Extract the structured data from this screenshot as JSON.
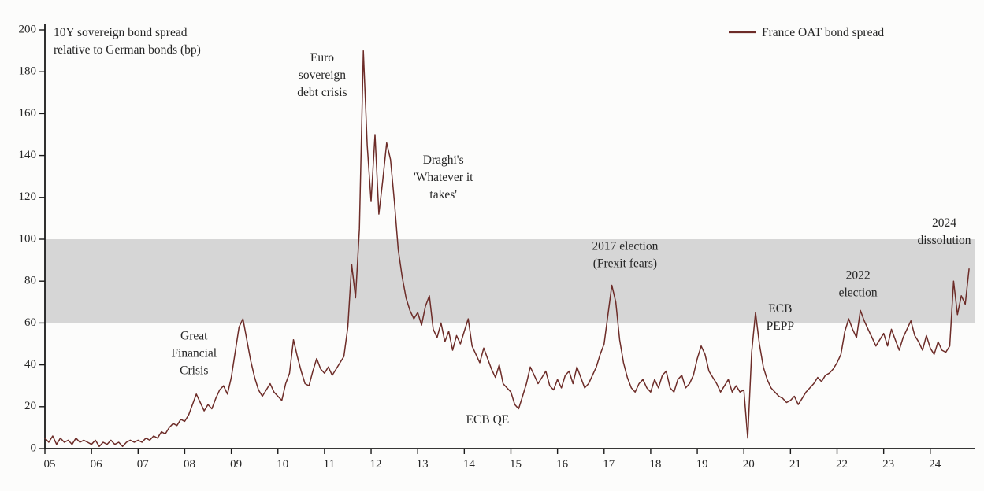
{
  "chart_data": {
    "type": "line",
    "title_lines": [
      "10Y sovereign bond spread",
      "relative to German bonds (bp)"
    ],
    "legend": {
      "label": "France OAT bond spread",
      "color": "#6d2c28"
    },
    "ylim": [
      0,
      200
    ],
    "xlim": [
      2005,
      2024.95
    ],
    "yticks": [
      0,
      20,
      40,
      60,
      80,
      100,
      120,
      140,
      160,
      180,
      200
    ],
    "xtick_years": [
      2005,
      2006,
      2007,
      2008,
      2009,
      2010,
      2011,
      2012,
      2013,
      2014,
      2015,
      2016,
      2017,
      2018,
      2019,
      2020,
      2021,
      2022,
      2023,
      2024
    ],
    "xtick_labels": [
      "05",
      "06",
      "07",
      "08",
      "09",
      "10",
      "11",
      "12",
      "13",
      "14",
      "15",
      "16",
      "17",
      "18",
      "19",
      "20",
      "21",
      "22",
      "23",
      "24"
    ],
    "band": {
      "from": 60,
      "to": 100,
      "color": "#d6d6d6"
    },
    "series": [
      {
        "name": "France OAT bond spread",
        "color": "#6d2c28",
        "start_year": 2005,
        "cadence": "monthly",
        "values": [
          5,
          3,
          6,
          2,
          5,
          3,
          4,
          2,
          5,
          3,
          4,
          3,
          2,
          4,
          1,
          3,
          2,
          4,
          2,
          3,
          1,
          3,
          4,
          3,
          4,
          3,
          5,
          4,
          6,
          5,
          8,
          7,
          10,
          12,
          11,
          14,
          13,
          16,
          21,
          26,
          22,
          18,
          21,
          19,
          24,
          28,
          30,
          26,
          34,
          46,
          58,
          62,
          52,
          42,
          34,
          28,
          25,
          28,
          31,
          27,
          25,
          23,
          31,
          36,
          52,
          44,
          37,
          31,
          30,
          37,
          43,
          38,
          36,
          39,
          35,
          38,
          41,
          44,
          58,
          88,
          72,
          105,
          190,
          145,
          118,
          150,
          112,
          128,
          146,
          138,
          118,
          95,
          82,
          72,
          66,
          62,
          65,
          59,
          68,
          73,
          57,
          53,
          60,
          51,
          56,
          47,
          54,
          50,
          56,
          62,
          49,
          45,
          41,
          48,
          43,
          38,
          34,
          40,
          31,
          29,
          27,
          21,
          19,
          25,
          31,
          39,
          35,
          31,
          34,
          37,
          30,
          28,
          33,
          29,
          35,
          37,
          31,
          39,
          34,
          29,
          31,
          35,
          39,
          45,
          50,
          64,
          78,
          70,
          52,
          41,
          34,
          29,
          27,
          31,
          33,
          29,
          27,
          33,
          29,
          35,
          37,
          29,
          27,
          33,
          35,
          29,
          31,
          35,
          43,
          49,
          45,
          37,
          34,
          31,
          27,
          30,
          33,
          27,
          30,
          27,
          28,
          5,
          46,
          65,
          50,
          39,
          33,
          29,
          27,
          25,
          24,
          22,
          23,
          25,
          21,
          24,
          27,
          29,
          31,
          34,
          32,
          35,
          36,
          38,
          41,
          45,
          56,
          62,
          57,
          53,
          66,
          61,
          57,
          53,
          49,
          52,
          55,
          49,
          57,
          52,
          47,
          53,
          57,
          61,
          54,
          51,
          47,
          54,
          48,
          45,
          51,
          47,
          46,
          49,
          80,
          64,
          73,
          69,
          86
        ]
      }
    ],
    "annotations": [
      {
        "lines": [
          "Great",
          "Financial",
          "Crisis"
        ],
        "x": 2008.2,
        "y": 52
      },
      {
        "lines": [
          "Euro",
          "sovereign",
          "debt crisis"
        ],
        "x": 2010.95,
        "y": 185
      },
      {
        "lines": [
          "Draghi's",
          "'Whatever it",
          "takes'"
        ],
        "x": 2013.55,
        "y": 136
      },
      {
        "lines": [
          "ECB QE"
        ],
        "x": 2014.5,
        "y": 12
      },
      {
        "lines": [
          "2017 election",
          "(Frexit fears)"
        ],
        "x": 2017.45,
        "y": 95
      },
      {
        "lines": [
          "ECB",
          "PEPP"
        ],
        "x": 2020.78,
        "y": 65
      },
      {
        "lines": [
          "2022",
          "election"
        ],
        "x": 2022.45,
        "y": 81
      },
      {
        "lines": [
          "2024",
          "dissolution"
        ],
        "x": 2024.3,
        "y": 106
      }
    ]
  }
}
